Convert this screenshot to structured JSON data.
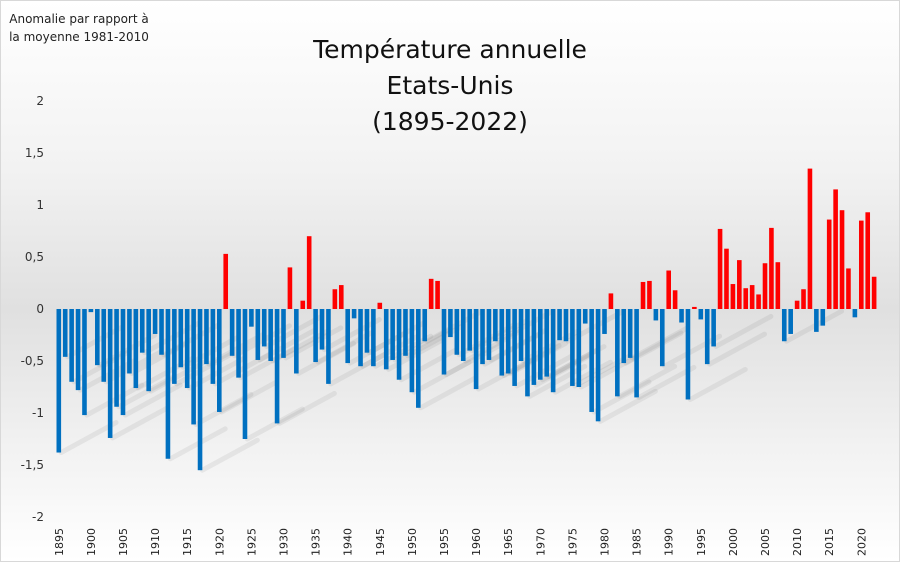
{
  "chart_data": {
    "type": "bar",
    "title": [
      "Température annuelle",
      "Etats-Unis",
      "(1895-2022)"
    ],
    "ylabel": "Anomalie par rapport à la moyenne 1981-2010",
    "xlabel": "",
    "ylim": [
      -2,
      2
    ],
    "yticks": [
      "2",
      "1,5",
      "1",
      "0,5",
      "0",
      "-0,5",
      "-1",
      "-1,5",
      "-2"
    ],
    "ytick_values": [
      2,
      1.5,
      1,
      0.5,
      0,
      -0.5,
      -1,
      -1.5,
      -2
    ],
    "xtick_labels": [
      "1895",
      "1900",
      "1905",
      "1910",
      "1915",
      "1920",
      "1925",
      "1930",
      "1935",
      "1940",
      "1945",
      "1950",
      "1955",
      "1960",
      "1965",
      "1970",
      "1975",
      "1980",
      "1985",
      "1990",
      "1995",
      "2000",
      "2005",
      "2010",
      "2015",
      "2020"
    ],
    "positive_color": "#ff0000",
    "negative_color": "#0070c0",
    "grid": false,
    "legend": "none",
    "x_start": 1895,
    "values": [
      -1.38,
      -0.46,
      -0.7,
      -0.78,
      -1.02,
      -0.03,
      -0.54,
      -0.7,
      -1.24,
      -0.94,
      -1.02,
      -0.62,
      -0.76,
      -0.42,
      -0.79,
      -0.24,
      -0.44,
      -1.44,
      -0.72,
      -0.56,
      -0.76,
      -1.11,
      -1.55,
      -0.53,
      -0.72,
      -0.99,
      0.53,
      -0.45,
      -0.66,
      -1.25,
      -0.17,
      -0.49,
      -0.36,
      -0.5,
      -1.1,
      -0.47,
      0.4,
      -0.62,
      0.08,
      0.7,
      -0.51,
      -0.39,
      -0.72,
      0.19,
      0.23,
      -0.52,
      -0.09,
      -0.55,
      -0.42,
      -0.55,
      0.06,
      -0.58,
      -0.49,
      -0.68,
      -0.45,
      -0.8,
      -0.95,
      -0.31,
      0.29,
      0.27,
      -0.63,
      -0.27,
      -0.44,
      -0.5,
      -0.4,
      -0.77,
      -0.53,
      -0.49,
      -0.31,
      -0.64,
      -0.62,
      -0.74,
      -0.5,
      -0.84,
      -0.73,
      -0.68,
      -0.65,
      -0.8,
      -0.3,
      -0.31,
      -0.74,
      -0.75,
      -0.14,
      -0.99,
      -1.08,
      -0.24,
      0.15,
      -0.84,
      -0.52,
      -0.47,
      -0.85,
      0.26,
      0.27,
      -0.11,
      -0.55,
      0.37,
      0.18,
      -0.13,
      -0.87,
      0.02,
      -0.1,
      -0.53,
      -0.36,
      0.77,
      0.58,
      0.24,
      0.47,
      0.2,
      0.23,
      0.14,
      0.44,
      0.78,
      0.45,
      -0.31,
      -0.24,
      0.08,
      0.19,
      1.35,
      -0.22,
      -0.16,
      0.86,
      1.15,
      0.95,
      0.39,
      -0.08,
      0.85,
      0.93,
      0.31
    ]
  }
}
